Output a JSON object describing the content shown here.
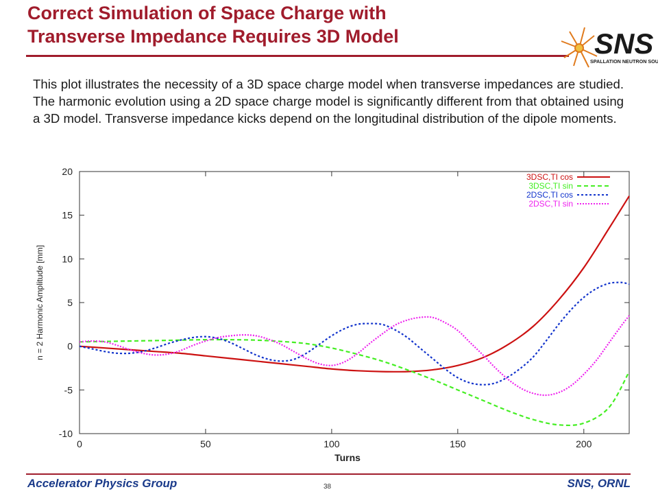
{
  "slide": {
    "title_line1": "Correct Simulation of Space Charge with",
    "title_line2": "Transverse Impedance Requires 3D Model",
    "body": "This plot illustrates the necessity of a 3D space charge model when transverse impedances are studied.  The harmonic evolution using a 2D space charge model is significantly different from that obtained using a 3D model.  Transverse impedance kicks depend on the longitudinal distribution of the dipole moments.",
    "logo_text": "SNS",
    "logo_subtext": "SPALLATION NEUTRON SOURCE"
  },
  "footer": {
    "left": "Accelerator Physics Group",
    "page": "38",
    "right": "SNS, ORNL"
  },
  "colors": {
    "title": "#a01c2c",
    "footer_text": "#1a3a8a",
    "logo_orange": "#e07a1c"
  },
  "chart_data": {
    "type": "line",
    "title": "",
    "xlabel": "Turns",
    "ylabel": "n = 2 Harmonic Amplitude [mm]",
    "xlim": [
      0,
      218
    ],
    "ylim": [
      -10,
      20
    ],
    "xticks": [
      0,
      50,
      100,
      150,
      200
    ],
    "yticks": [
      -10,
      -5,
      0,
      5,
      10,
      15,
      20
    ],
    "legend_position": "top-right",
    "series": [
      {
        "name": "3DSC,TI cos",
        "color": "#cc1111",
        "dash": "solid",
        "x": [
          0,
          10,
          20,
          30,
          40,
          50,
          60,
          70,
          80,
          90,
          100,
          110,
          120,
          130,
          140,
          150,
          160,
          170,
          180,
          190,
          200,
          210,
          218
        ],
        "y": [
          0.0,
          -0.2,
          -0.4,
          -0.6,
          -0.8,
          -1.1,
          -1.4,
          -1.7,
          -2.0,
          -2.3,
          -2.6,
          -2.8,
          -2.9,
          -2.9,
          -2.7,
          -2.2,
          -1.3,
          0.2,
          2.3,
          5.3,
          9.0,
          13.5,
          17.2
        ]
      },
      {
        "name": "3DSC,TI sin",
        "color": "#44ee22",
        "dash": "dashed",
        "x": [
          0,
          10,
          20,
          30,
          40,
          50,
          60,
          70,
          80,
          90,
          100,
          110,
          120,
          130,
          140,
          150,
          160,
          170,
          180,
          190,
          200,
          210,
          218
        ],
        "y": [
          0.5,
          0.55,
          0.6,
          0.65,
          0.7,
          0.75,
          0.75,
          0.7,
          0.55,
          0.3,
          -0.2,
          -0.9,
          -1.7,
          -2.7,
          -3.8,
          -5.0,
          -6.2,
          -7.4,
          -8.4,
          -9.0,
          -8.8,
          -7.0,
          -2.9
        ]
      },
      {
        "name": "2DSC,TI cos",
        "color": "#1133cc",
        "dash": "dotted",
        "x": [
          0,
          5,
          10,
          15,
          20,
          25,
          30,
          35,
          40,
          45,
          50,
          55,
          60,
          65,
          70,
          75,
          80,
          85,
          90,
          95,
          100,
          105,
          110,
          115,
          120,
          125,
          130,
          135,
          140,
          145,
          150,
          155,
          160,
          165,
          170,
          175,
          180,
          185,
          190,
          195,
          200,
          205,
          210,
          215,
          218
        ],
        "y": [
          0.0,
          -0.3,
          -0.6,
          -0.8,
          -0.8,
          -0.6,
          -0.2,
          0.3,
          0.7,
          1.0,
          1.1,
          0.9,
          0.4,
          -0.3,
          -1.0,
          -1.5,
          -1.7,
          -1.5,
          -0.8,
          0.2,
          1.2,
          2.0,
          2.5,
          2.6,
          2.5,
          1.9,
          1.0,
          -0.2,
          -1.4,
          -2.6,
          -3.6,
          -4.2,
          -4.4,
          -4.2,
          -3.5,
          -2.5,
          -1.2,
          0.6,
          2.5,
          4.2,
          5.6,
          6.6,
          7.2,
          7.3,
          7.1
        ]
      },
      {
        "name": "2DSC,TI sin",
        "color": "#ee22ee",
        "dash": "dash-dot",
        "x": [
          0,
          5,
          10,
          15,
          20,
          25,
          30,
          35,
          40,
          45,
          50,
          55,
          60,
          65,
          70,
          75,
          80,
          85,
          90,
          95,
          100,
          105,
          110,
          115,
          120,
          125,
          130,
          135,
          140,
          145,
          150,
          155,
          160,
          165,
          170,
          175,
          180,
          185,
          190,
          195,
          200,
          205,
          210,
          215,
          218
        ],
        "y": [
          0.5,
          0.6,
          0.5,
          0.1,
          -0.4,
          -0.8,
          -1.0,
          -0.9,
          -0.5,
          0.1,
          0.6,
          1.0,
          1.2,
          1.3,
          1.2,
          0.8,
          0.2,
          -0.6,
          -1.4,
          -2.0,
          -2.2,
          -1.8,
          -0.9,
          0.3,
          1.4,
          2.4,
          3.0,
          3.3,
          3.3,
          2.7,
          1.8,
          0.4,
          -1.0,
          -2.5,
          -3.8,
          -4.8,
          -5.4,
          -5.6,
          -5.3,
          -4.5,
          -3.2,
          -1.6,
          0.4,
          2.4,
          3.5
        ]
      }
    ]
  }
}
